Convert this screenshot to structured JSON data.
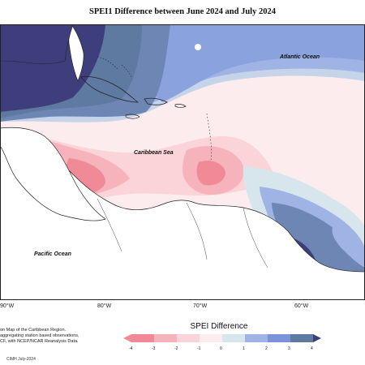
{
  "title": "SPEI1 Difference between June 2024 and July 2024",
  "labels": {
    "atlantic": "Atlantic Ocean",
    "caribbean": "Caribbean Sea",
    "pacific": "Pacific Ocean"
  },
  "longitude_ticks": [
    "90°W",
    "80°W",
    "70°W",
    "60°W"
  ],
  "notes": [
    "on Map of the Caribbean Region.",
    "aggregating station based observations,",
    "CF, with NCEP/NCAR Reanalysis Data."
  ],
  "credit": "CIMH July-2024",
  "legend": {
    "title": "SPEI Difference",
    "ticks": [
      "-4",
      "-3",
      "-2",
      "-1",
      "0",
      "1",
      "2",
      "3",
      "4"
    ],
    "colors": [
      "#f08a96",
      "#f6b3bb",
      "#fad4d8",
      "#fdeced",
      "#d6e6ec",
      "#9fb4e4",
      "#7d93d8",
      "#5f7aa0",
      "#3e3e7c"
    ]
  }
}
